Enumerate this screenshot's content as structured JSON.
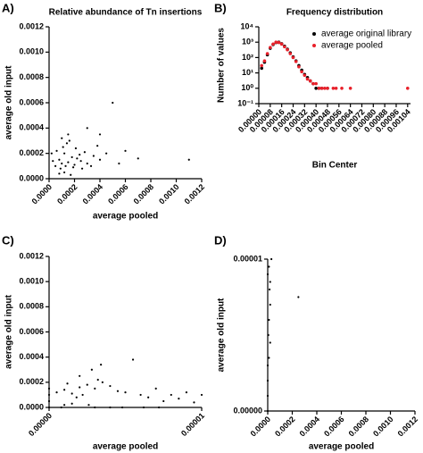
{
  "chart_data": [
    {
      "type": "scatter",
      "panel_label": "A)",
      "title": "Relative abundance of Tn insertions",
      "x_label": "average pooled",
      "y_label": "average old input",
      "color": "#000000",
      "xlim": [
        0,
        0.0012
      ],
      "ylim": [
        0,
        0.0012
      ],
      "xticks": [
        {
          "value": 0,
          "label": "0.0000"
        },
        0.0002,
        0.0004,
        0.0006,
        0.0008,
        {
          "value": 0.001,
          "label": "0.0010"
        },
        0.0012
      ],
      "yticks": [
        {
          "value": 0,
          "label": "0.0000"
        },
        0.0002,
        0.0004,
        0.0006,
        0.0008,
        {
          "value": 0.001,
          "label": "0.0010"
        },
        0.0012
      ],
      "x": [
        5e-05,
        8e-05,
        0.0001,
        0.00012,
        0.00015,
        0.00018,
        0.0002,
        0.00022,
        0.00025,
        0.0003,
        6e-05,
        9e-05,
        0.00011,
        0.00013,
        0.00016,
        0.00019,
        0.00021,
        0.00024,
        0.00028,
        0.00035,
        0.0004,
        0.00045,
        0.0005,
        0.00055,
        0.0004,
        0.00012,
        0.00014,
        0.00017,
        3e-05,
        2e-05,
        0.0001,
        8e-05,
        0.0003,
        0.00033,
        0.00038,
        0.0006,
        0.0007,
        0.0011,
        0.00026,
        0.00015
      ],
      "values": [
        0.0001,
        0.00015,
        0.00012,
        0.0002,
        0.00013,
        0.00017,
        0.00011,
        0.00016,
        0.00014,
        0.00012,
        0.00022,
        8e-05,
        0.00025,
        0.0001,
        0.0003,
        9e-05,
        0.00024,
        0.00019,
        0.00021,
        0.00018,
        0.00015,
        0.0002,
        0.0006,
        0.00012,
        0.00035,
        5e-05,
        0.00028,
        3e-05,
        0.00014,
        0.0002,
        0.00032,
        4e-05,
        0.0004,
        0.0001,
        0.00026,
        0.00022,
        0.00016,
        0.00015,
        8e-05,
        0.00035
      ]
    },
    {
      "type": "scatter",
      "panel_label": "B)",
      "title": "Frequency distribution",
      "x_label": "Bin Center",
      "y_label": "Number of values",
      "yscale": "log",
      "legend": "top-right",
      "xlim": [
        0,
        0.00106
      ],
      "ylim": [
        0.1,
        10000
      ],
      "xticks": [
        {
          "value": 0,
          "label": "0.00000"
        },
        8e-05,
        0.00016,
        0.00024,
        0.00032,
        {
          "value": 0.0004,
          "label": "0.00040"
        },
        0.00048,
        0.00056,
        0.00064,
        0.00072,
        {
          "value": 0.0008,
          "label": "0.00080"
        },
        0.00088,
        0.00096,
        0.00104
      ],
      "yticks": [
        {
          "value": 0.1,
          "label": "10⁻¹"
        },
        {
          "value": 1,
          "label": "10⁰"
        },
        {
          "value": 10,
          "label": "10¹"
        },
        {
          "value": 100,
          "label": "10²"
        },
        {
          "value": 1000,
          "label": "10³"
        },
        {
          "value": 10000,
          "label": "10⁴"
        }
      ],
      "x": [
        2e-05,
        4e-05,
        6e-05,
        8e-05,
        0.0001,
        0.00012,
        0.00014,
        0.00016,
        0.00018,
        0.0002,
        0.00022,
        0.00024,
        0.00026,
        0.00028,
        0.0003,
        0.00032,
        0.00034,
        0.00036,
        0.00038,
        0.0004,
        0.00042,
        0.00044,
        0.00046,
        0.00048,
        0.0005,
        0.00052,
        0.00054,
        0.00056,
        0.00058,
        0.0006,
        0.00062,
        0.00064,
        0.00104
      ],
      "series": [
        {
          "name": "average original library",
          "color": "#000000",
          "values": [
            20,
            50,
            150,
            400,
            700,
            950,
            1000,
            800,
            550,
            350,
            200,
            110,
            60,
            30,
            15,
            8,
            5,
            3,
            2,
            1,
            1,
            1,
            null,
            1,
            null,
            null,
            null,
            null,
            null,
            null,
            null,
            null,
            null
          ]
        },
        {
          "name": "average pooled",
          "color": "#e8202a",
          "values": [
            30,
            60,
            180,
            450,
            750,
            1000,
            950,
            750,
            500,
            320,
            180,
            100,
            55,
            25,
            12,
            7,
            4,
            3,
            2,
            2,
            1,
            1,
            1,
            1,
            null,
            1,
            1,
            null,
            1,
            null,
            null,
            1,
            1
          ]
        }
      ]
    },
    {
      "type": "scatter",
      "panel_label": "C)",
      "x_label": "average pooled",
      "y_label": "average old input",
      "color": "#000000",
      "xlim": [
        0,
        1e-05
      ],
      "ylim": [
        0,
        0.0012
      ],
      "xticks": [
        {
          "value": 0,
          "label": "0.00000"
        },
        1e-05
      ],
      "yticks": [
        {
          "value": 0,
          "label": "0.0000"
        },
        0.0002,
        0.0004,
        0.0006,
        0.0008,
        {
          "value": 0.001,
          "label": "0.0010"
        },
        0.0012
      ],
      "x": [
        0,
        0,
        0,
        0,
        5e-07,
        1e-06,
        1.5e-06,
        2e-06,
        2.5e-06,
        3e-06,
        3.5e-06,
        4e-06,
        4.5e-06,
        2e-06,
        2.2e-06,
        2.8e-06,
        3.2e-06,
        1.8e-06,
        1.2e-06,
        8e-07,
        5e-06,
        5.5e-06,
        6e-06,
        6.5e-06,
        7e-06,
        7.5e-06,
        8e-06,
        8.5e-06,
        9e-06,
        9.5e-06,
        1e-05,
        3e-06,
        4e-06,
        4.8e-06,
        6.2e-06,
        7.2e-06,
        1e-06,
        1.5e-06,
        2.6e-06,
        3.4e-06
      ],
      "values": [
        5e-05,
        0.0001,
        0.00015,
        0,
        0.00012,
        0.00014,
        0.00011,
        0.00016,
        0.00018,
        0.00015,
        0.0002,
        0.00017,
        0.00013,
        0.00025,
        0.0001,
        0.0003,
        0.00022,
        8e-05,
        0.00019,
        0,
        0.00012,
        0.00038,
        0.0001,
        8e-05,
        0.00015,
        5e-05,
        0.0001,
        7e-05,
        0.00012,
        4e-05,
        0.0001,
        0,
        0,
        0,
        0,
        0,
        2e-05,
        3e-05,
        2e-05,
        0.00034
      ]
    },
    {
      "type": "scatter",
      "panel_label": "D)",
      "x_label": "average pooled",
      "y_label": "average old input",
      "color": "#000000",
      "xlim": [
        0,
        0.0012
      ],
      "ylim": [
        0,
        1e-05
      ],
      "xticks": [
        {
          "value": 0,
          "label": "0.0000"
        },
        0.0002,
        0.0004,
        0.0006,
        0.0008,
        {
          "value": 0.001,
          "label": "0.0010"
        },
        0.0012
      ],
      "yticks": [
        {
          "value": 0,
          "label": "0.00000"
        },
        1e-05
      ],
      "x": [
        0,
        0,
        0,
        0,
        1e-05,
        2e-05,
        5e-06,
        1e-05,
        2e-05,
        0.00025,
        1.5e-05,
        0,
        1e-05,
        3e-05,
        2e-05
      ],
      "values": [
        0,
        1e-06,
        2e-06,
        3e-06,
        3.5e-06,
        4.5e-06,
        5e-06,
        6e-06,
        7e-06,
        7.5e-06,
        8e-06,
        9e-06,
        9.5e-06,
        1e-05,
        8.5e-06
      ]
    }
  ]
}
